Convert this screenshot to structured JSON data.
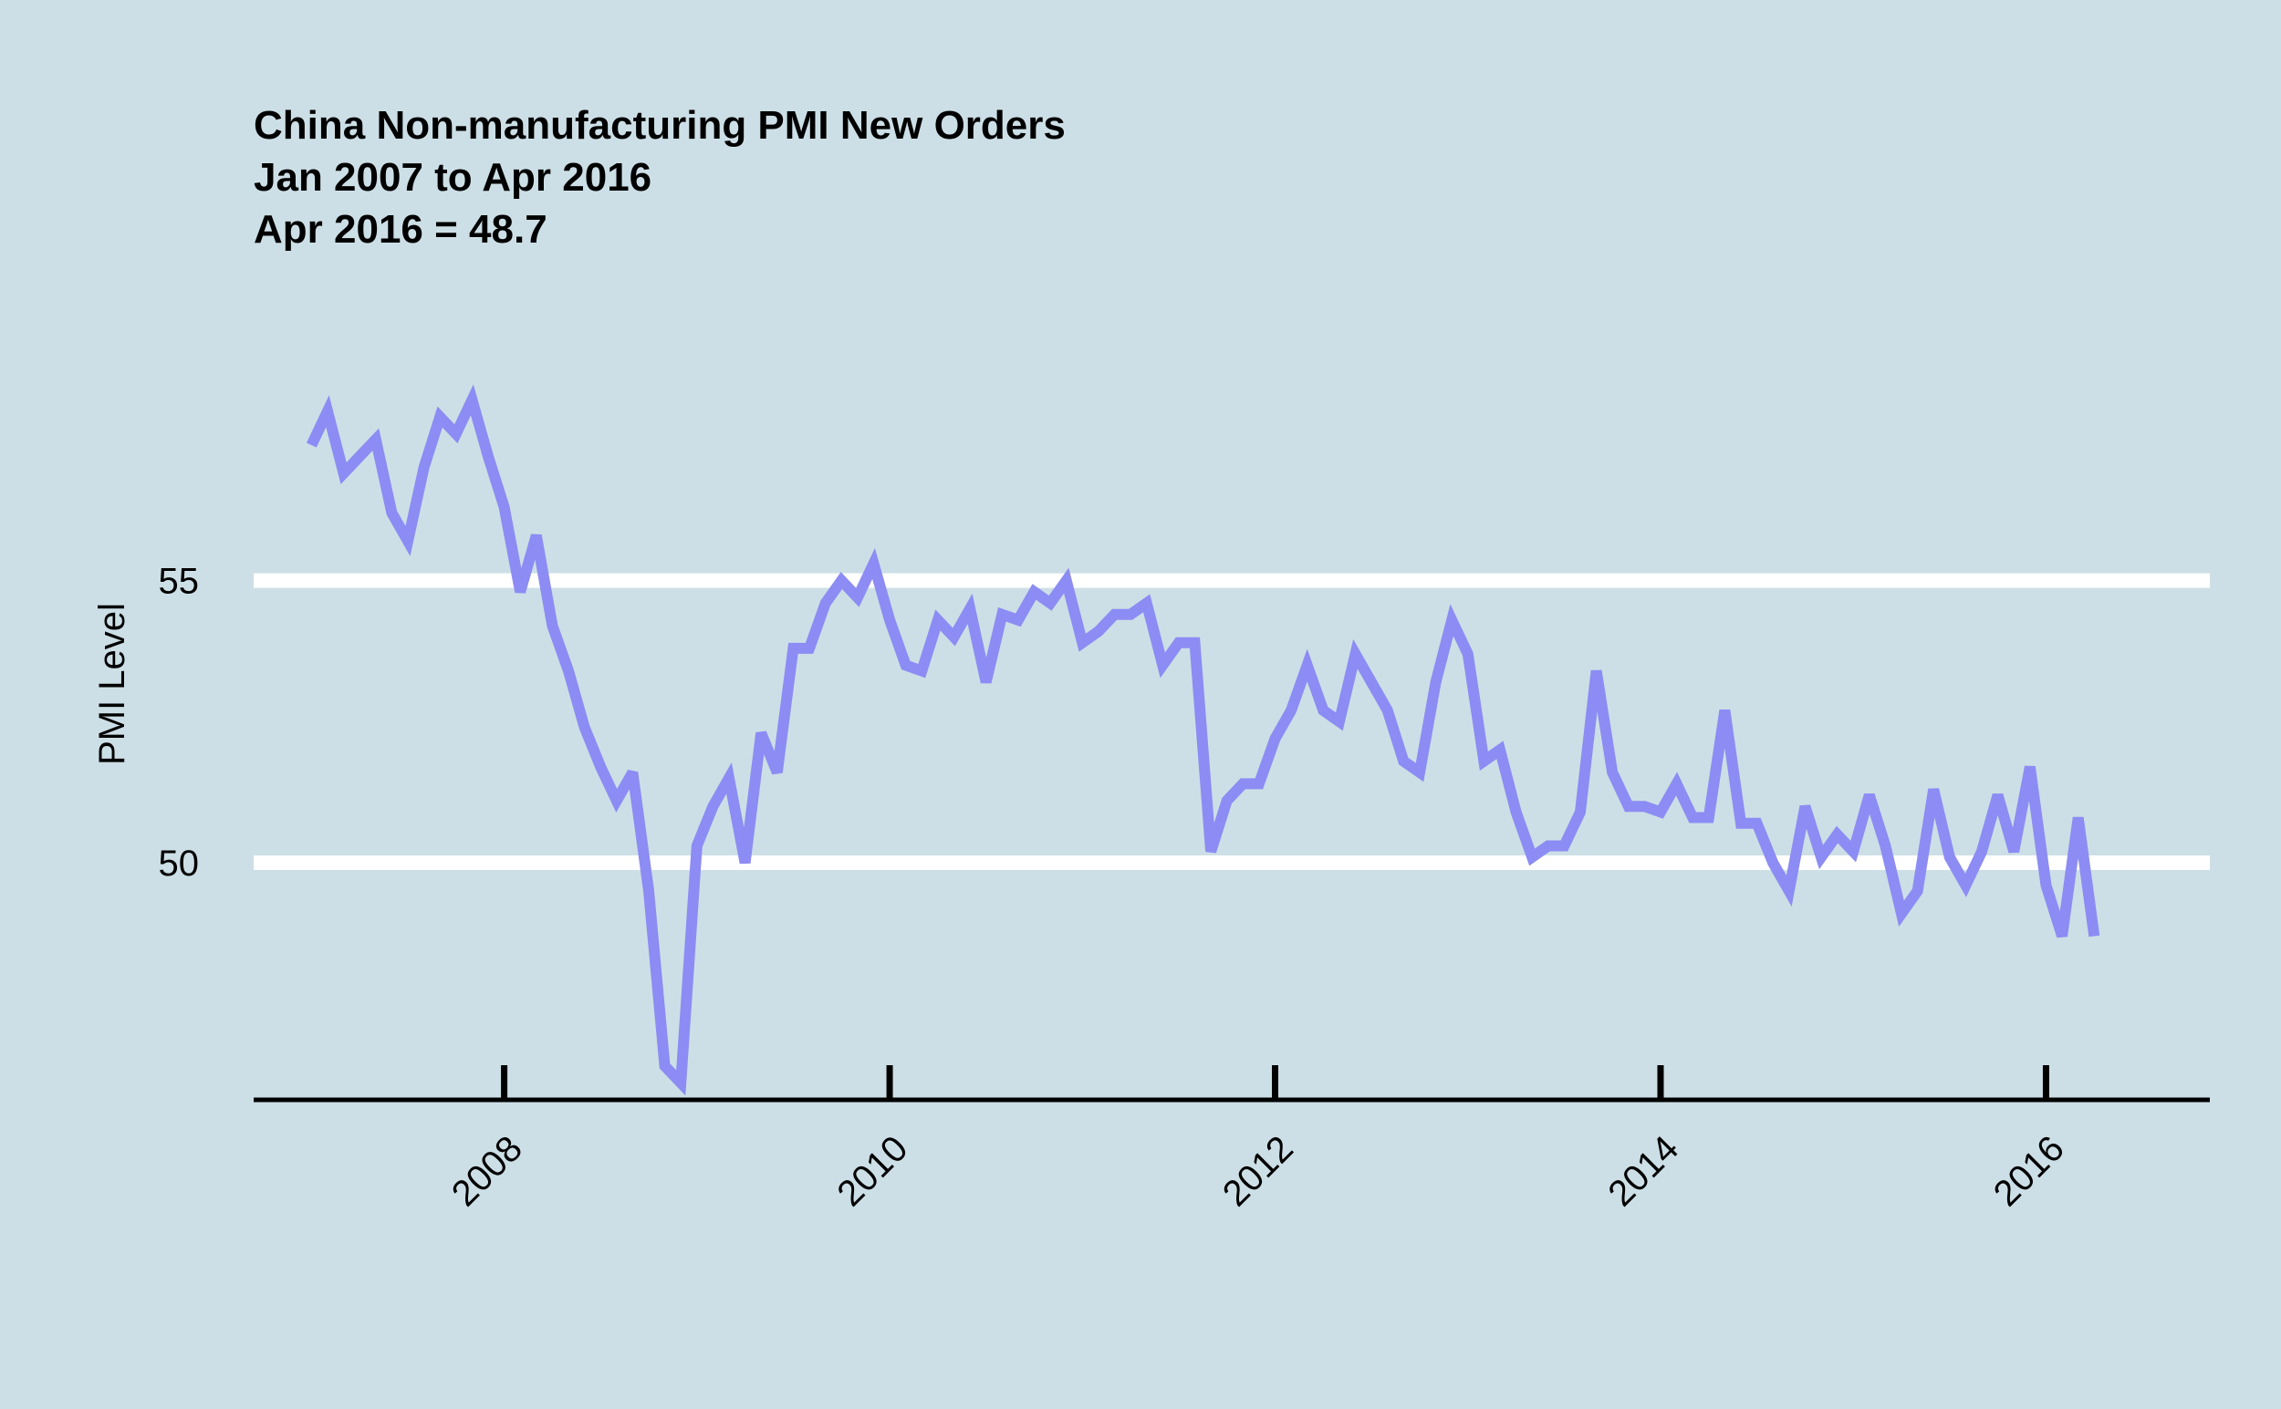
{
  "chart_data": {
    "type": "line",
    "title": "China Non-manufacturing PMI New Orders",
    "subtitle": "Jan 2007 to Apr 2016",
    "note": "Apr 2016 = 48.7",
    "xlabel": "",
    "ylabel": "PMI Level",
    "grid": "horizontal at 50 and 55",
    "colors": {
      "background": "#cddfe6",
      "line": "#8c8cf4",
      "grid": "#ffffff",
      "axis": "#000000"
    },
    "xlim": [
      2006.7,
      2016.85
    ],
    "ylim": [
      45.8,
      60.6
    ],
    "x_ticks": [
      2008,
      2010,
      2012,
      2014,
      2016
    ],
    "x_tick_labels": [
      "2008",
      "2010",
      "2012",
      "2014",
      "2016"
    ],
    "y_ticks": [
      50,
      55
    ],
    "y_tick_labels": [
      "50",
      "55"
    ],
    "series": [
      {
        "x": [
          "2007-01",
          "2007-02",
          "2007-03",
          "2007-04",
          "2007-05",
          "2007-06",
          "2007-07",
          "2007-08",
          "2007-09",
          "2007-10",
          "2007-11",
          "2007-12",
          "2008-01",
          "2008-02",
          "2008-03",
          "2008-04",
          "2008-05",
          "2008-06",
          "2008-07",
          "2008-08",
          "2008-09",
          "2008-10",
          "2008-11",
          "2008-12",
          "2009-01",
          "2009-02",
          "2009-03",
          "2009-04",
          "2009-05",
          "2009-06",
          "2009-07",
          "2009-08",
          "2009-09",
          "2009-10",
          "2009-11",
          "2009-12",
          "2010-01",
          "2010-02",
          "2010-03",
          "2010-04",
          "2010-05",
          "2010-06",
          "2010-07",
          "2010-08",
          "2010-09",
          "2010-10",
          "2010-11",
          "2010-12",
          "2011-01",
          "2011-02",
          "2011-03",
          "2011-04",
          "2011-05",
          "2011-06",
          "2011-07",
          "2011-08",
          "2011-09",
          "2011-10",
          "2011-11",
          "2011-12",
          "2012-01",
          "2012-02",
          "2012-03",
          "2012-04",
          "2012-05",
          "2012-06",
          "2012-07",
          "2012-08",
          "2012-09",
          "2012-10",
          "2012-11",
          "2012-12",
          "2013-01",
          "2013-02",
          "2013-03",
          "2013-04",
          "2013-05",
          "2013-06",
          "2013-07",
          "2013-08",
          "2013-09",
          "2013-10",
          "2013-11",
          "2013-12",
          "2014-01",
          "2014-02",
          "2014-03",
          "2014-04",
          "2014-05",
          "2014-06",
          "2014-07",
          "2014-08",
          "2014-09",
          "2014-10",
          "2014-11",
          "2014-12",
          "2015-01",
          "2015-02",
          "2015-03",
          "2015-04",
          "2015-05",
          "2015-06",
          "2015-07",
          "2015-08",
          "2015-09",
          "2015-10",
          "2015-11",
          "2015-12",
          "2016-01",
          "2016-02",
          "2016-03",
          "2016-04"
        ],
        "y": [
          57.4,
          58.0,
          56.9,
          57.2,
          57.5,
          56.2,
          55.7,
          57.0,
          57.9,
          57.6,
          58.2,
          57.2,
          56.3,
          54.8,
          55.8,
          54.2,
          53.4,
          52.4,
          51.7,
          51.1,
          51.6,
          49.5,
          46.4,
          46.1,
          50.3,
          51.0,
          51.5,
          50.0,
          52.3,
          51.6,
          53.8,
          53.8,
          54.6,
          55.0,
          54.7,
          55.3,
          54.3,
          53.5,
          53.4,
          54.3,
          54.0,
          54.5,
          53.2,
          54.4,
          54.3,
          54.8,
          54.6,
          55.0,
          53.9,
          54.1,
          54.4,
          54.4,
          54.6,
          53.5,
          53.9,
          53.9,
          50.2,
          51.1,
          51.4,
          51.4,
          52.2,
          52.7,
          53.5,
          52.7,
          52.5,
          53.7,
          53.2,
          52.7,
          51.8,
          51.6,
          53.2,
          54.3,
          53.7,
          51.8,
          52.0,
          50.9,
          50.1,
          50.3,
          50.3,
          50.9,
          53.4,
          51.6,
          51.0,
          51.0,
          50.9,
          51.4,
          50.8,
          50.8,
          52.7,
          50.7,
          50.7,
          50.0,
          49.5,
          51.0,
          50.1,
          50.5,
          50.2,
          51.2,
          50.3,
          49.1,
          49.5,
          51.3,
          50.1,
          49.6,
          50.2,
          51.2,
          50.2,
          51.7,
          49.6,
          48.7,
          50.8,
          48.7
        ]
      }
    ]
  }
}
